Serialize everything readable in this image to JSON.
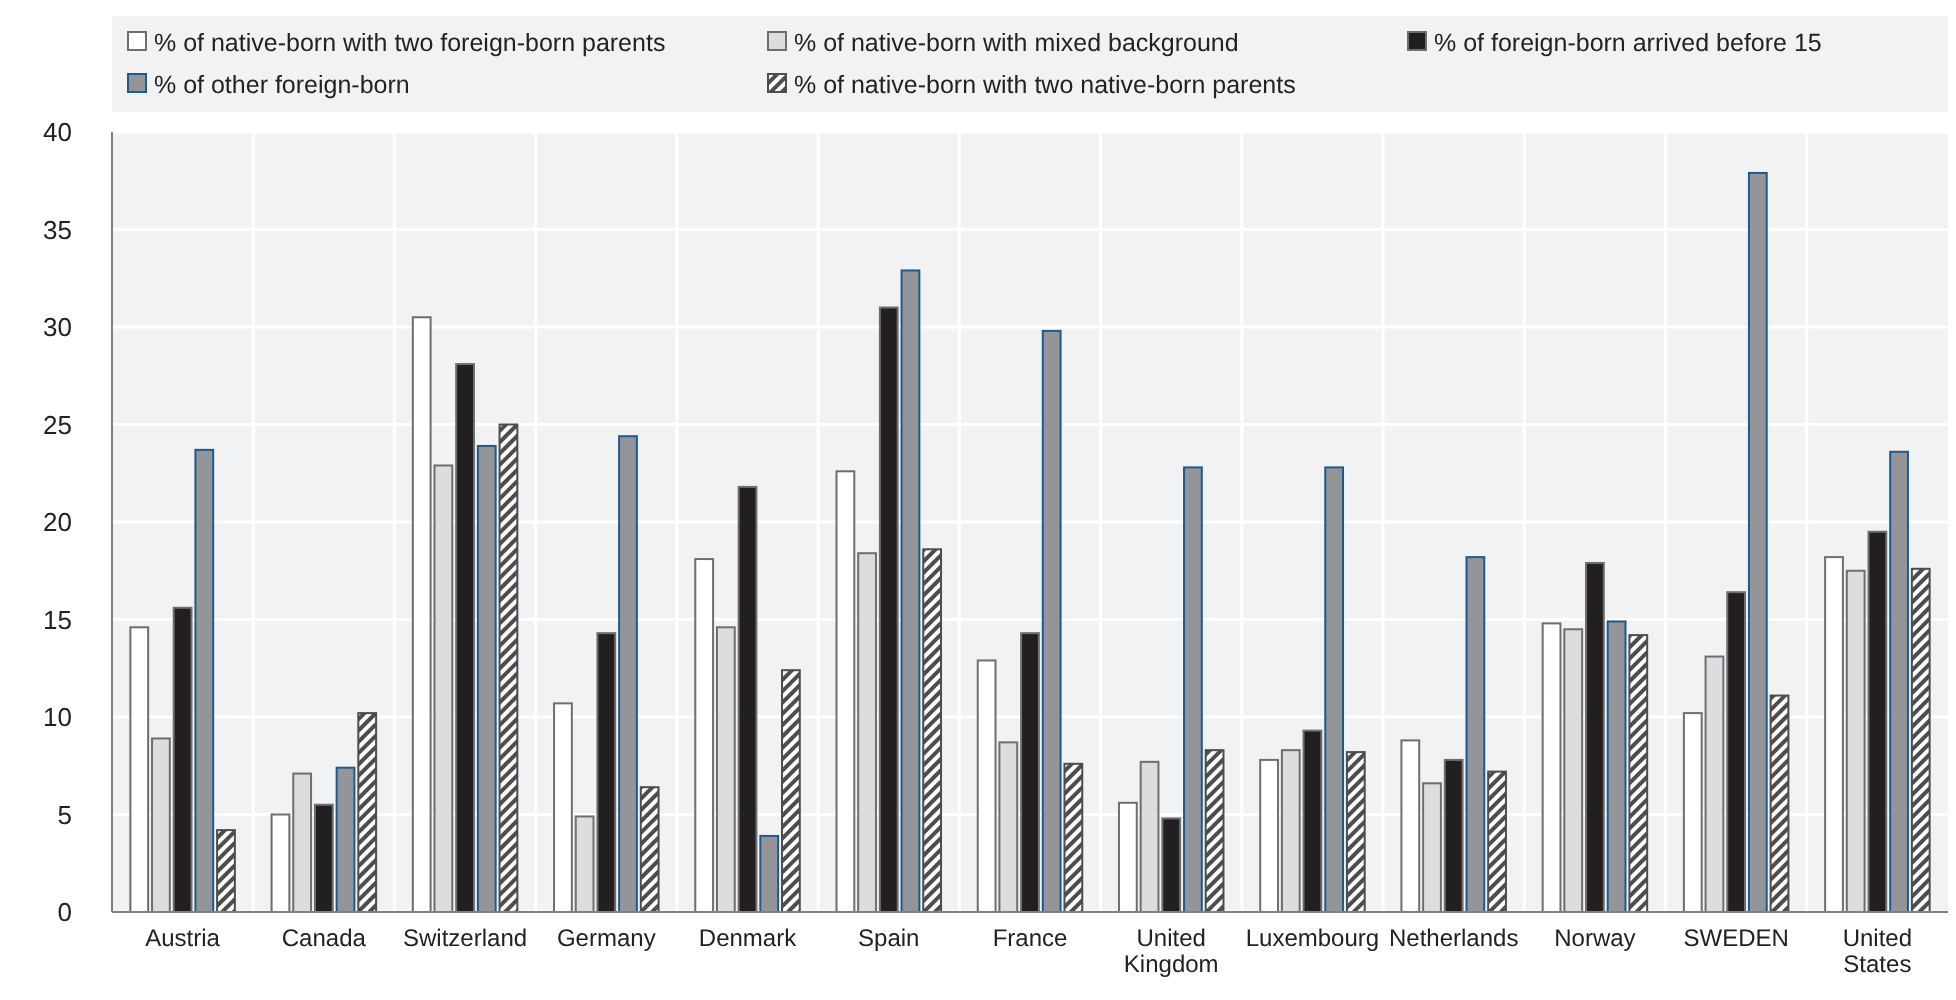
{
  "chart_data": {
    "type": "bar",
    "categories": [
      "Austria",
      "Canada",
      "Switzerland",
      "Germany",
      "Denmark",
      "Spain",
      "France",
      "United Kingdom",
      "Luxembourg",
      "Netherlands",
      "Norway",
      "SWEDEN",
      "United States"
    ],
    "series": [
      {
        "name": "% of native-born with two foreign-born parents",
        "color": "#ffffff",
        "values": [
          14.6,
          5.0,
          30.5,
          10.7,
          18.1,
          22.6,
          12.9,
          5.6,
          7.8,
          8.8,
          14.8,
          10.2,
          18.2
        ]
      },
      {
        "name": "% of native-born with mixed background",
        "color": "#dcdddf",
        "values": [
          8.9,
          7.1,
          22.9,
          4.9,
          14.6,
          18.4,
          8.7,
          7.7,
          8.3,
          6.6,
          14.5,
          13.1,
          17.5
        ]
      },
      {
        "name": "% of foreign-born arrived before 15",
        "color": "#231f20",
        "values": [
          15.6,
          5.5,
          28.1,
          14.3,
          21.8,
          31.0,
          14.3,
          4.8,
          9.3,
          7.8,
          17.9,
          16.4,
          19.5
        ]
      },
      {
        "name": "% of other foreign-born",
        "color": "#939598",
        "values": [
          23.7,
          7.4,
          23.9,
          24.4,
          3.9,
          32.9,
          29.8,
          22.8,
          22.8,
          18.2,
          14.9,
          37.9,
          23.6
        ]
      },
      {
        "name": "% of native-born with two native-born parents",
        "color": "#4d4d4f",
        "values": [
          4.2,
          10.2,
          25.0,
          6.4,
          12.4,
          18.6,
          7.6,
          8.3,
          8.2,
          7.2,
          14.2,
          11.1,
          17.6
        ]
      }
    ],
    "ylim": [
      0,
      40
    ],
    "yticks": [
      0,
      5,
      10,
      15,
      20,
      25,
      30,
      35,
      40
    ],
    "grid": true,
    "legend": "top"
  }
}
